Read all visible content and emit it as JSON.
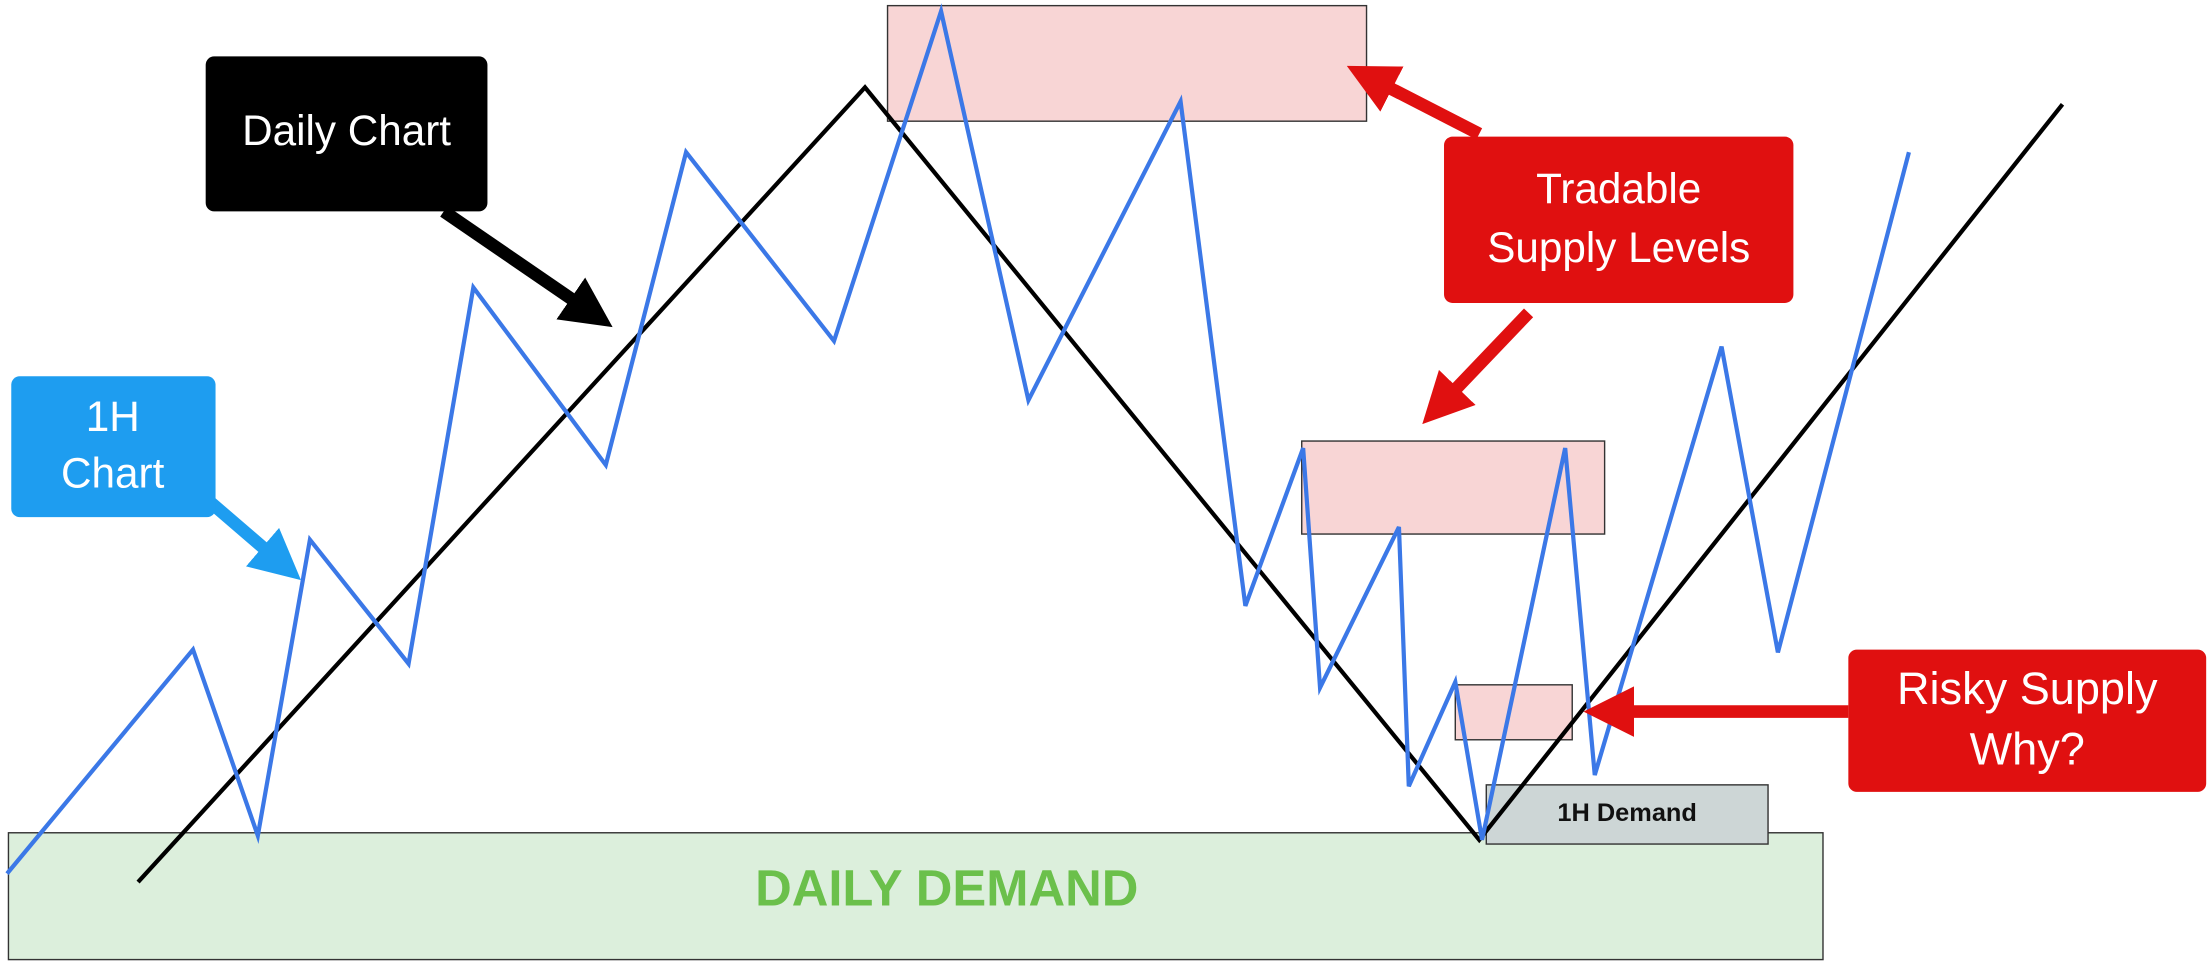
{
  "labels": {
    "daily_chart": "Daily Chart",
    "h1_chart": [
      "1H",
      "Chart"
    ],
    "tradable_supply": [
      "Tradable",
      "Supply Levels"
    ],
    "risky_supply": [
      "Risky Supply",
      "Why?"
    ]
  },
  "zones": {
    "h1_demand": "1H Demand",
    "daily_demand": "DAILY DEMAND"
  }
}
